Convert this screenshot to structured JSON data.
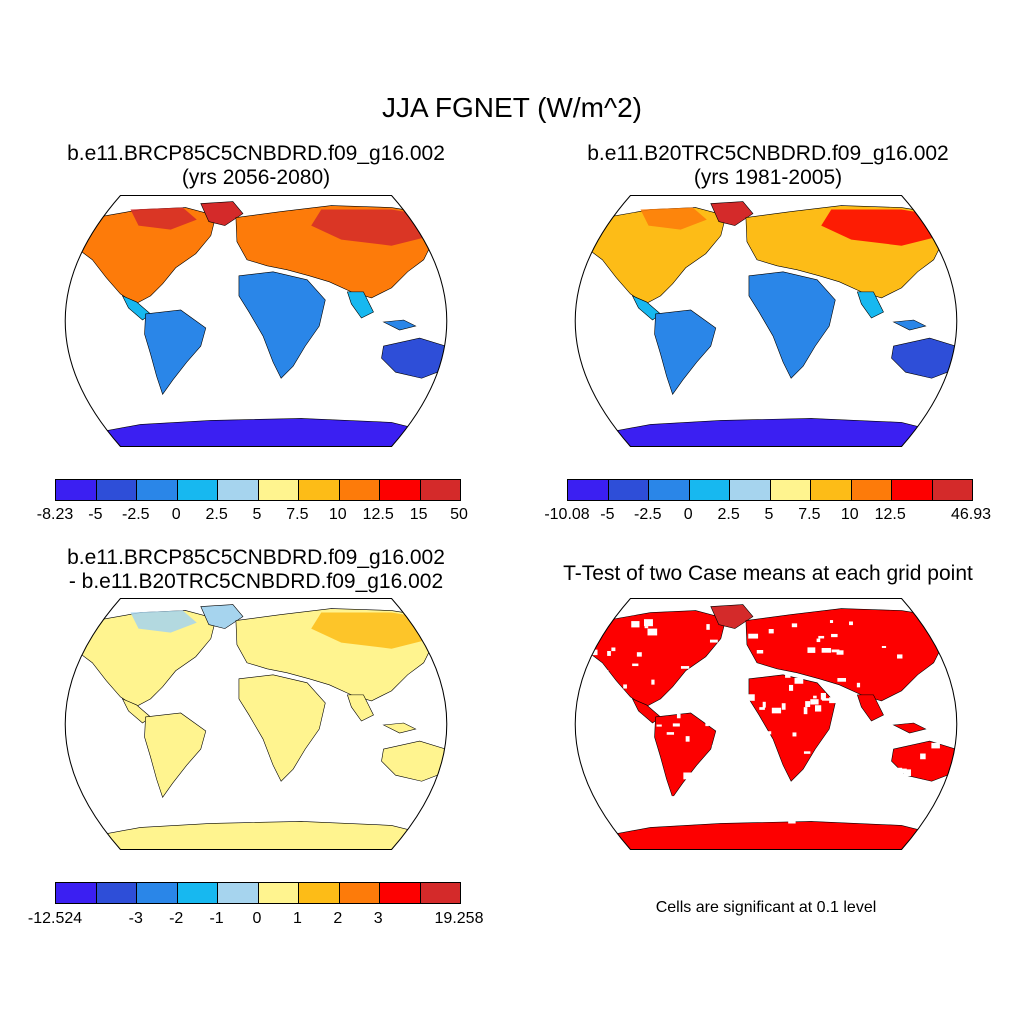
{
  "title": "JJA FGNET (W/m^2)",
  "colors": [
    "#3b1ff2",
    "#2e4ed8",
    "#2a86e8",
    "#17b8f0",
    "#a6d4ee",
    "#fff48f",
    "#fdbc17",
    "#fd7b0a",
    "#fd0000",
    "#d42a2a"
  ],
  "panels": [
    {
      "title_line1": "b.e11.BRCP85C5CNBDRD.f09_g16.002",
      "title_line2": "(yrs 2056-2080)",
      "colorbar_labels": [
        "-8.23",
        "-5",
        "-2.5",
        "0",
        "2.5",
        "5",
        "7.5",
        "10",
        "12.5",
        "15",
        "50"
      ]
    },
    {
      "title_line1": "b.e11.B20TRC5CNBDRD.f09_g16.002",
      "title_line2": "(yrs 1981-2005)",
      "colorbar_labels": [
        "-10.08",
        "-5",
        "-2.5",
        "0",
        "2.5",
        "5",
        "7.5",
        "10",
        "12.5",
        "46.93"
      ]
    },
    {
      "title_line1": "b.e11.BRCP85C5CNBDRD.f09_g16.002",
      "title_line2": "- b.e11.B20TRC5CNBDRD.f09_g16.002",
      "colorbar_labels": [
        "-12.524",
        "-3",
        "-2",
        "-1",
        "0",
        "1",
        "2",
        "3",
        "19.258"
      ]
    },
    {
      "title_line1": "T-Test of two Case means at each grid point",
      "note": "Cells are significant at 0.1 level"
    }
  ]
}
